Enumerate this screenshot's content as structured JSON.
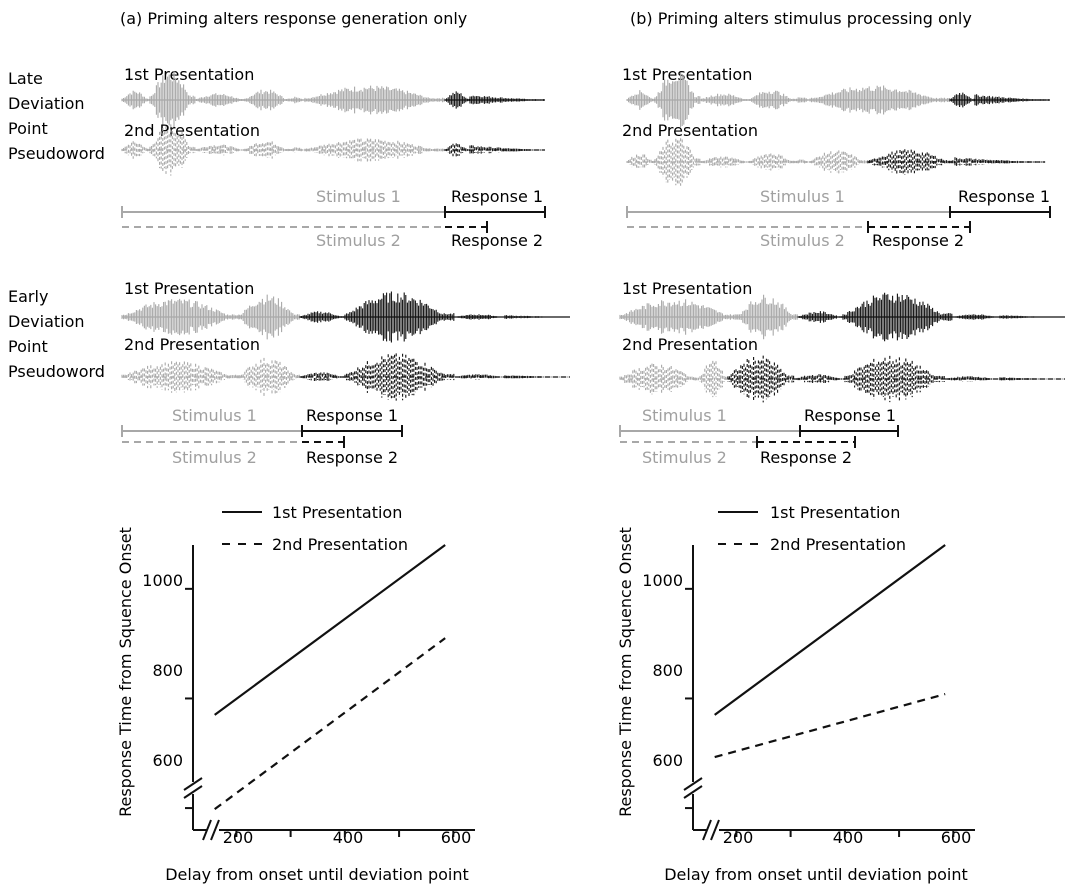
{
  "panels": [
    {
      "title": "(a) Priming alters response generation only",
      "late": {
        "row_label": [
          "Late",
          "Deviation",
          "Point",
          "Pseudoword"
        ],
        "pres1": "1st Presentation",
        "pres2": "2nd Presentation",
        "stimulus1": "Stimulus 1",
        "response1": "Response 1",
        "stimulus2": "Stimulus 2",
        "response2": "Response 2"
      },
      "early": {
        "row_label": [
          "Early",
          "Deviation",
          "Point",
          "Pseudoword"
        ],
        "pres1": "1st Presentation",
        "pres2": "2nd Presentation",
        "stimulus1": "Stimulus 1",
        "response1": "Response 1",
        "stimulus2": "Stimulus 2",
        "response2": "Response 2"
      },
      "chart": {
        "legend": [
          "1st Presentation",
          "2nd Presentation"
        ],
        "ylabel": "Response Time from Squence Onset",
        "xlabel": "Delay from onset until deviation point",
        "xticks": [
          "200",
          "400",
          "600"
        ],
        "yticks": [
          "600",
          "800",
          "1000"
        ]
      }
    },
    {
      "title": "(b) Priming alters stimulus processing only",
      "late": {
        "pres1": "1st Presentation",
        "pres2": "2nd Presentation",
        "stimulus1": "Stimulus 1",
        "response1": "Response 1",
        "stimulus2": "Stimulus 2",
        "response2": "Response 2"
      },
      "early": {
        "pres1": "1st Presentation",
        "pres2": "2nd Presentation",
        "stimulus1": "Stimulus 1",
        "response1": "Response 1",
        "stimulus2": "Stimulus 2",
        "response2": "Response 2"
      },
      "chart": {
        "legend": [
          "1st Presentation",
          "2nd Presentation"
        ],
        "ylabel": "Response Time from Squence Onset",
        "xlabel": "Delay from onset until deviation point",
        "xticks": [
          "200",
          "400",
          "600"
        ],
        "yticks": [
          "600",
          "800",
          "1000"
        ]
      }
    }
  ],
  "colors": {
    "stimulus": "#a8a8a8",
    "response": "#111111"
  },
  "chart_data": [
    {
      "type": "line",
      "title": "",
      "xlabel": "Delay from onset until deviation point",
      "ylabel": "Response Time from Squence Onset",
      "xlim": [
        120,
        640
      ],
      "ylim": [
        560,
        1080
      ],
      "grid": false,
      "legend": "top",
      "series": [
        {
          "name": "1st Presentation",
          "style": "solid",
          "x": [
            160,
            585
          ],
          "y": [
            770,
            1080
          ]
        },
        {
          "name": "2nd Presentation",
          "style": "dashed",
          "x": [
            160,
            585
          ],
          "y": [
            598,
            910
          ]
        }
      ]
    },
    {
      "type": "line",
      "title": "",
      "xlabel": "Delay from onset until deviation point",
      "ylabel": "Response Time from Squence Onset",
      "xlim": [
        120,
        640
      ],
      "ylim": [
        560,
        1080
      ],
      "grid": false,
      "legend": "top",
      "series": [
        {
          "name": "1st Presentation",
          "style": "solid",
          "x": [
            160,
            585
          ],
          "y": [
            770,
            1080
          ]
        },
        {
          "name": "2nd Presentation",
          "style": "dashed",
          "x": [
            160,
            585
          ],
          "y": [
            693,
            808
          ]
        }
      ]
    }
  ]
}
